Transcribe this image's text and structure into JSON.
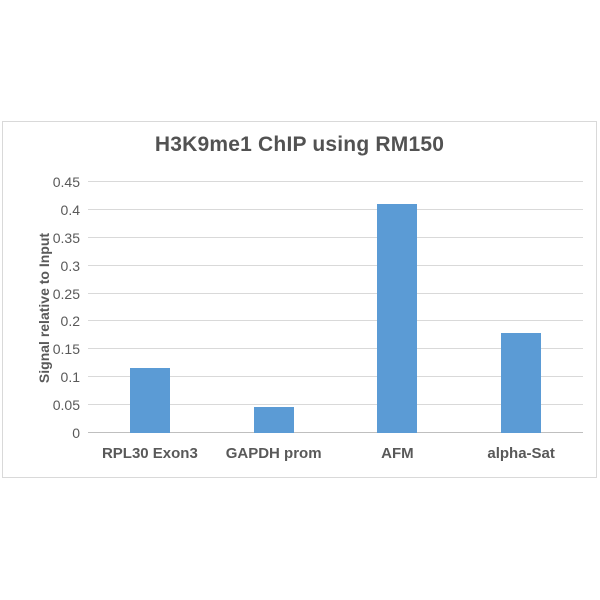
{
  "chart_data": {
    "type": "bar",
    "title": "H3K9me1 ChIP using RM150",
    "xlabel": "",
    "ylabel": "Signal relative to Input",
    "categories": [
      "RPL30 Exon3",
      "GAPDH prom",
      "AFM",
      "alpha-Sat"
    ],
    "values": [
      0.117,
      0.046,
      0.41,
      0.18
    ],
    "ylim": [
      0,
      0.45
    ],
    "ytick_step": 0.05,
    "ytick_labels": [
      "0",
      "0.05",
      "0.1",
      "0.15",
      "0.2",
      "0.25",
      "0.3",
      "0.35",
      "0.4",
      "0.45"
    ],
    "grid": true,
    "legend": false,
    "colors": {
      "bar_fill": "#5b9bd5",
      "gridline": "#d9d9d9",
      "axis_line": "#bfbfbf",
      "frame_border": "#d9d9d9",
      "title_text": "#525252",
      "label_text": "#595959",
      "background": "#ffffff"
    }
  }
}
